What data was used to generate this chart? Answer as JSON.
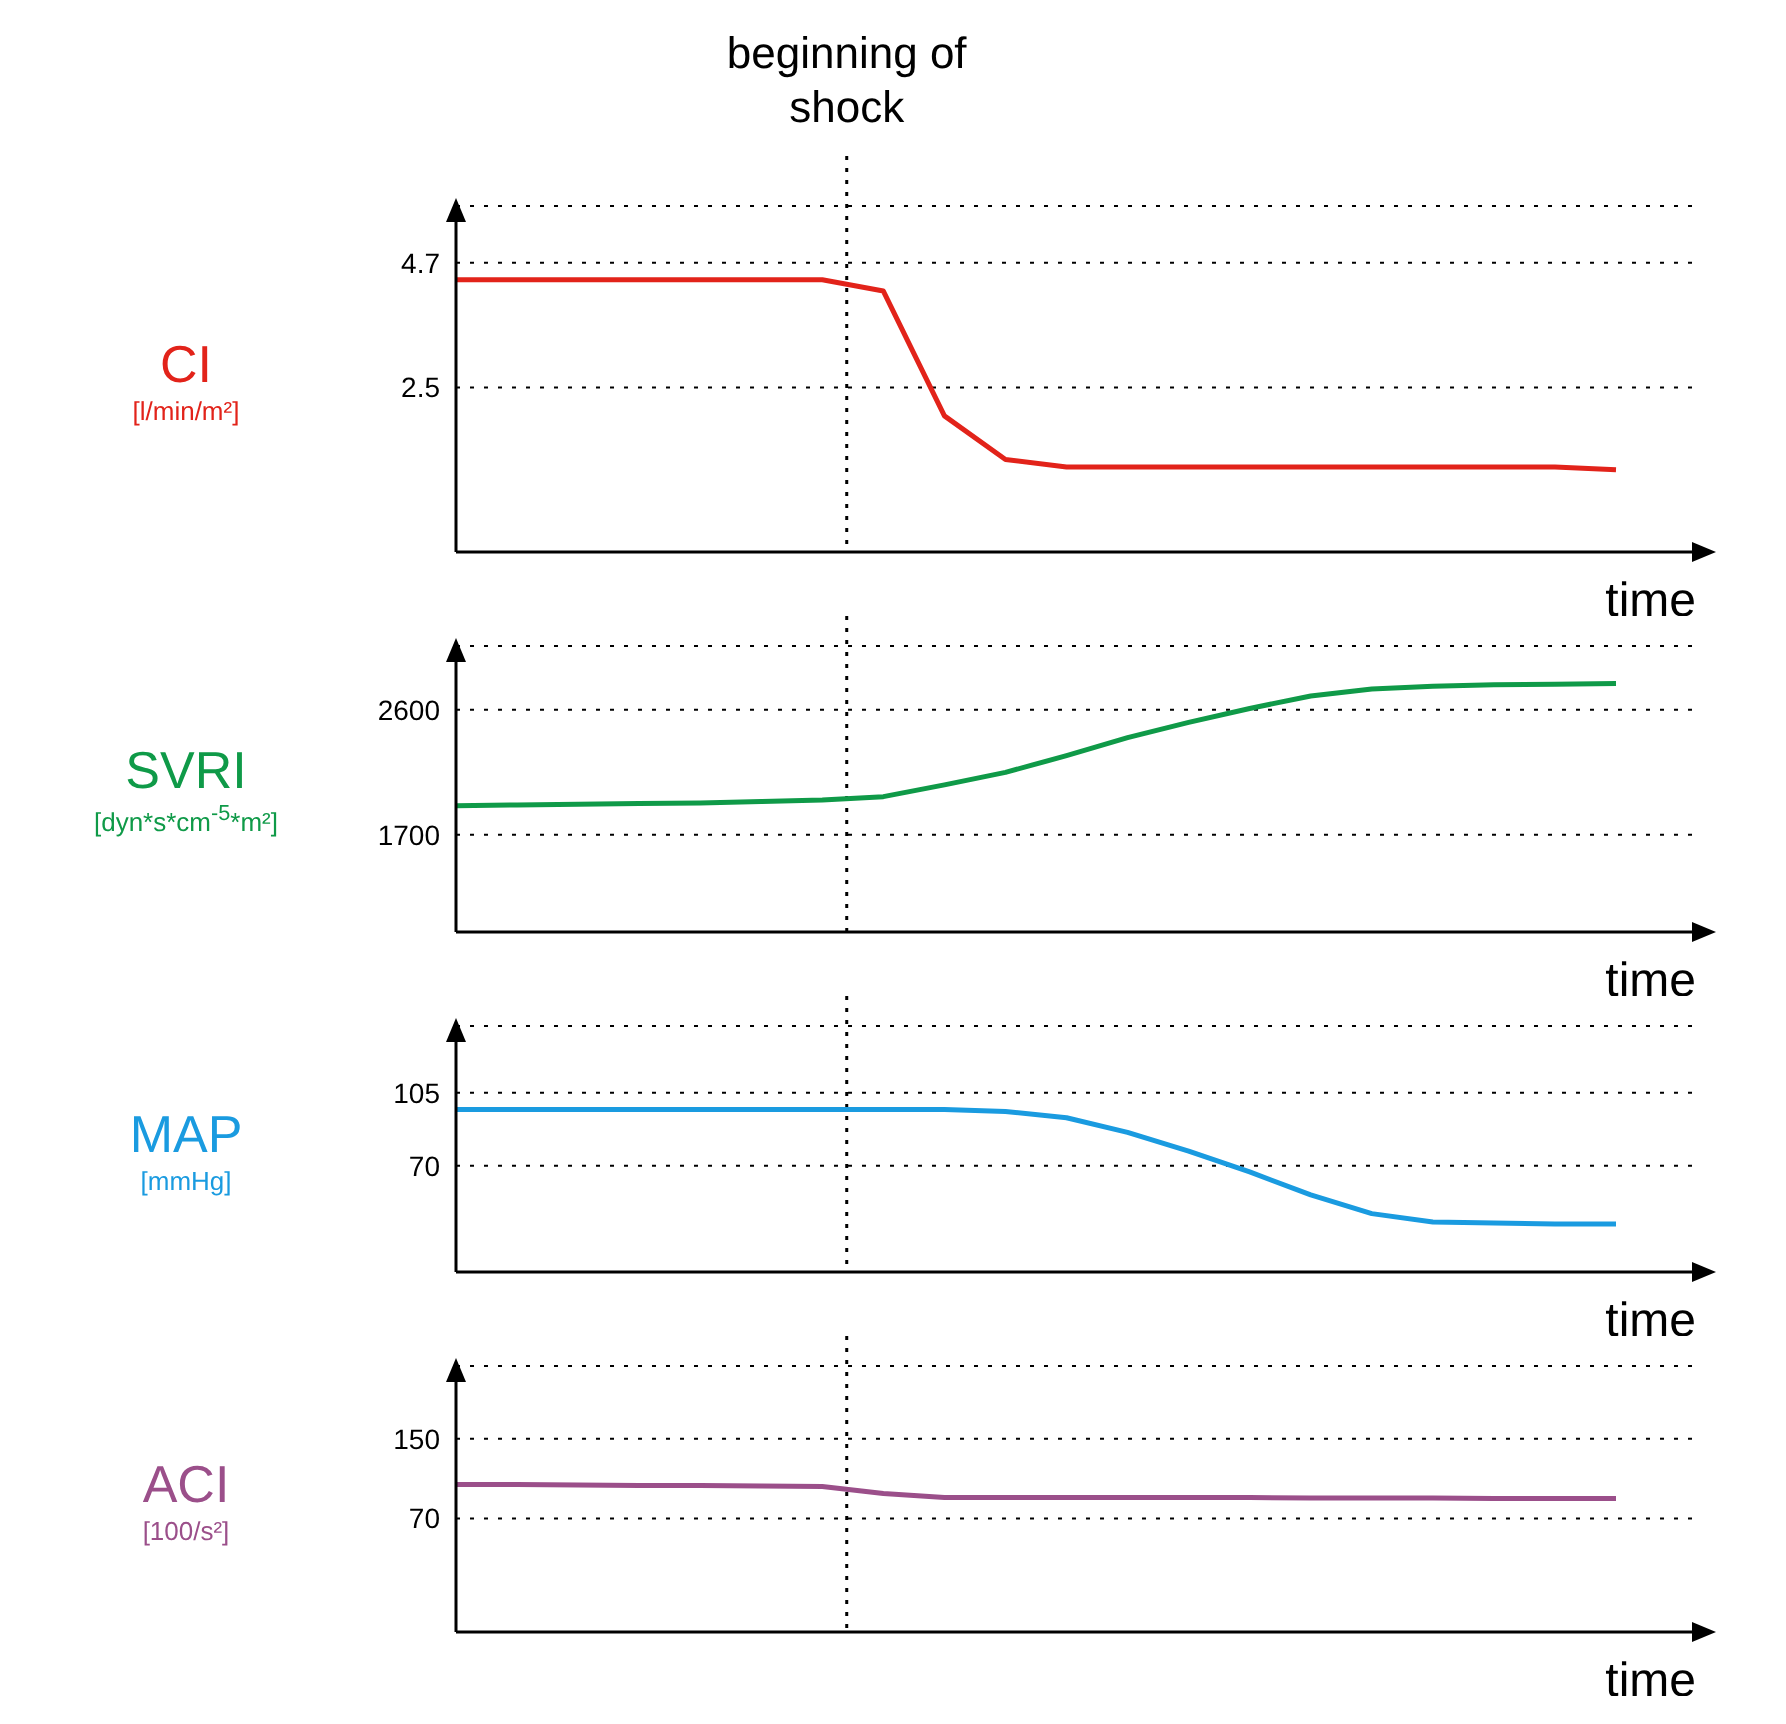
{
  "chart_data": [
    {
      "type": "line",
      "annotations": [
        "beginning of shock"
      ],
      "ylabel": "CI [l/min/m²]",
      "xlabel": "time",
      "categories": [
        null,
        null,
        null,
        null,
        null,
        null,
        null,
        null,
        null,
        null,
        null,
        null,
        null,
        null,
        null,
        null,
        null,
        null,
        null,
        null
      ],
      "series": [
        {
          "color": "#e2231a",
          "values": [
            4.4,
            4.4,
            4.4,
            4.4,
            4.4,
            4.4,
            4.4,
            4.2,
            2.0,
            1.23,
            1.1,
            1.1,
            1.1,
            1.1,
            1.1,
            1.1,
            1.1,
            1.1,
            1.1,
            1.05
          ]
        }
      ],
      "ylim": [
        -0.4,
        5.7
      ],
      "yticks": [
        2.5,
        4.7
      ],
      "grid": "y"
    },
    {
      "type": "line",
      "ylabel": "SVRI [dyn*s*cm$^{-5}$*m²]",
      "xlabel": "time",
      "categories": [
        null,
        null,
        null,
        null,
        null,
        null,
        null,
        null,
        null,
        null,
        null,
        null,
        null,
        null,
        null,
        null,
        null,
        null,
        null,
        null
      ],
      "series": [
        {
          "color": "#0f9a48",
          "values": [
            1910,
            1915,
            1920,
            1925,
            1930,
            1940,
            1950,
            1975,
            2060,
            2150,
            2270,
            2400,
            2510,
            2610,
            2700,
            2750,
            2770,
            2780,
            2785,
            2790
          ]
        }
      ],
      "ylim": [
        1000,
        3060
      ],
      "yticks": [
        1700,
        2600
      ],
      "grid": "y"
    },
    {
      "type": "line",
      "ylabel": "MAP [mmHg]",
      "xlabel": "time",
      "categories": [
        null,
        null,
        null,
        null,
        null,
        null,
        null,
        null,
        null,
        null,
        null,
        null,
        null,
        null,
        null,
        null,
        null,
        null,
        null,
        null
      ],
      "series": [
        {
          "color": "#1a9be0",
          "values": [
            97,
            97,
            97,
            97,
            97,
            97,
            97,
            97,
            97,
            96,
            93,
            86,
            77,
            67,
            56,
            47,
            43,
            42.5,
            42,
            42
          ]
        }
      ],
      "ylim": [
        19,
        137
      ],
      "yticks": [
        70,
        105
      ],
      "grid": "y"
    },
    {
      "type": "line",
      "ylabel": "ACI [100/s²]",
      "xlabel": "time",
      "categories": [
        null,
        null,
        null,
        null,
        null,
        null,
        null,
        null,
        null,
        null,
        null,
        null,
        null,
        null,
        null,
        null,
        null,
        null,
        null,
        null
      ],
      "series": [
        {
          "color": "#9b4f8a",
          "values": [
            104,
            104,
            103.5,
            103,
            103,
            102.5,
            102,
            95,
            91,
            91,
            91,
            91,
            91,
            91,
            90.5,
            90.5,
            90.5,
            90,
            90,
            90
          ]
        }
      ],
      "ylim": [
        -44,
        223
      ],
      "yticks": [
        70,
        150
      ],
      "grid": "y"
    }
  ]
}
